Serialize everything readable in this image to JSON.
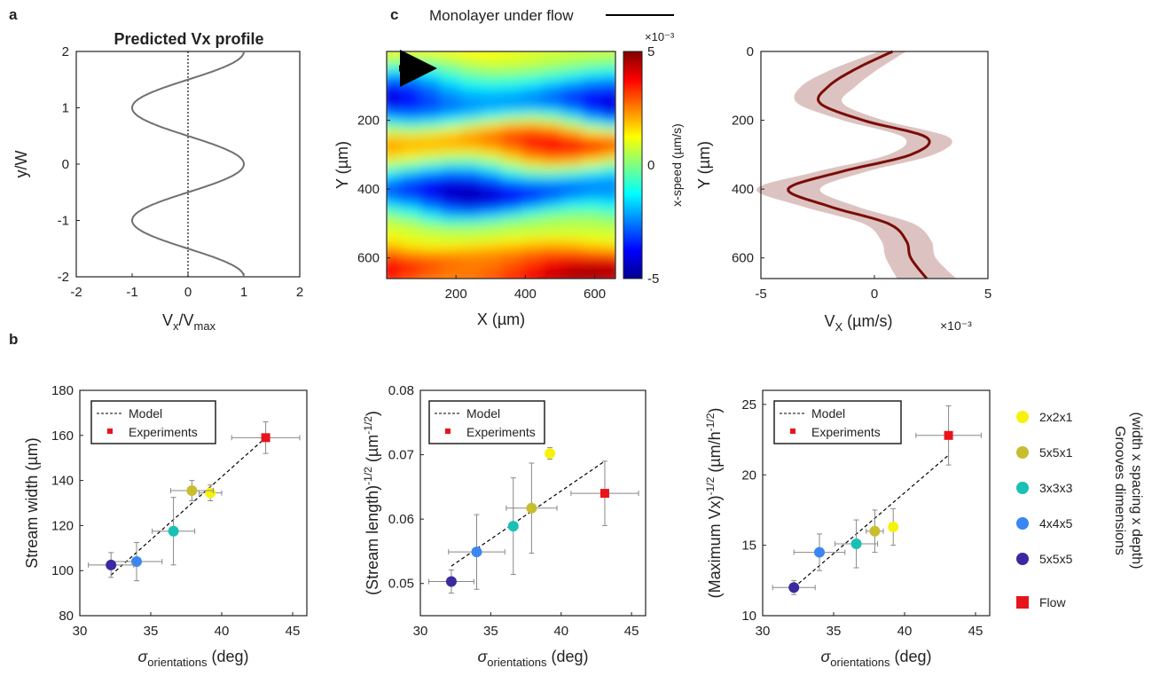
{
  "panel_letters": {
    "a": "a",
    "b": "b",
    "c": "c"
  },
  "colors": {
    "g2x2x1": "#f7f20c",
    "g5x5x1": "#c7bd2e",
    "g3x3x3": "#19c0b4",
    "g4x4x5": "#3a86f2",
    "g5x5x5": "#3a2aa0",
    "flow": "#e8141c",
    "profile": "#7a0d08",
    "band": "#dcc3c1",
    "curve_a": "#707070"
  },
  "header": {
    "legend_label": "Monolayer under flow"
  },
  "legend_right": {
    "items": [
      {
        "label": "2x2x1",
        "color": "#f7f20c",
        "marker": "circle"
      },
      {
        "label": "5x5x1",
        "color": "#c7bd2e",
        "marker": "circle"
      },
      {
        "label": "3x3x3",
        "color": "#19c0b4",
        "marker": "circle"
      },
      {
        "label": "4x4x5",
        "color": "#3a86f2",
        "marker": "circle"
      },
      {
        "label": "5x5x5",
        "color": "#3a2aa0",
        "marker": "circle"
      },
      {
        "label": "Flow",
        "color": "#e8141c",
        "marker": "square"
      }
    ],
    "title_line1": "Grooves dimensions",
    "title_line2": "(width x spacing x depth)"
  },
  "chart_data": [
    {
      "id": "a",
      "type": "line",
      "title": "Predicted Vx profile",
      "xlabel": "V",
      "xlabel_sub1": "x",
      "xlabel_mid": "/V",
      "xlabel_sub2": "max",
      "ylabel": "y/W",
      "xlim": [
        -2,
        2
      ],
      "ylim": [
        -2,
        2
      ],
      "xticks": [
        "-2",
        "-1",
        "0",
        "1",
        "2"
      ],
      "yticks": [
        "-2",
        "-1",
        "0",
        "1",
        "2"
      ],
      "curve": "Vx = cos(pi*y) for y in [-2, 2]",
      "reference_line_x": 0
    },
    {
      "id": "c-map",
      "type": "heatmap",
      "xlabel": "X (µm)",
      "ylabel": "Y (µm)",
      "xticks": [
        "200",
        "400",
        "600"
      ],
      "yticks": [
        "200",
        "400",
        "600"
      ],
      "colorbar_label": "x-speed (µm/s)",
      "colorbar_ticks": [
        "5",
        "0",
        "-5"
      ],
      "colorbar_exponent": "×10⁻³",
      "colorbar_range": [
        -0.005,
        0.005
      ],
      "bands": [
        {
          "y": 0,
          "value": 0.0012
        },
        {
          "y": 150,
          "value": -0.0038
        },
        {
          "y": 260,
          "value": 0.0034
        },
        {
          "y": 410,
          "value": -0.0041
        },
        {
          "y": 520,
          "value": 0.0008
        },
        {
          "y": 620,
          "value": 0.0042
        }
      ],
      "flow_arrow": "right"
    },
    {
      "id": "c-profile",
      "type": "line",
      "xlabel": "V",
      "xlabel_sub": "X",
      "xlabel_unit": " (µm/s)",
      "x_exponent": "×10⁻³",
      "ylabel": "Y (µm)",
      "xlim": [
        -5,
        5
      ],
      "ylim": [
        0,
        660
      ],
      "xticks": [
        "-5",
        "0",
        "5"
      ],
      "yticks": [
        "0",
        "200",
        "400",
        "600"
      ],
      "series": [
        {
          "y": [
            0,
            50,
            100,
            150,
            200,
            250,
            300,
            350,
            400,
            450,
            500,
            550,
            600,
            660
          ],
          "x": [
            0.8,
            -0.8,
            -2.0,
            -2.4,
            -0.5,
            2.3,
            1.6,
            -1.5,
            -3.8,
            -2.0,
            0.6,
            1.4,
            1.6,
            2.3
          ],
          "band_halfwidth": [
            0.6,
            1.0,
            1.2,
            1.0,
            0.9,
            1.0,
            1.0,
            1.1,
            1.4,
            1.2,
            1.1,
            1.1,
            1.1,
            1.3
          ]
        }
      ]
    },
    {
      "id": "b1",
      "type": "scatter",
      "xlabel": "σ",
      "xlabel_sub": "orientations",
      "xlabel_unit": " (deg)",
      "ylabel": "Stream width (µm)",
      "xlim": [
        30,
        46
      ],
      "ylim": [
        80,
        180
      ],
      "xticks": [
        "30",
        "35",
        "40",
        "45"
      ],
      "yticks": [
        "80",
        "100",
        "120",
        "140",
        "160",
        "180"
      ],
      "legend": {
        "model": "Model",
        "experiments": "Experiments"
      },
      "model_line": [
        [
          32.2,
          98
        ],
        [
          43.1,
          159
        ]
      ],
      "points": [
        {
          "name": "2x2x1",
          "x": 39.2,
          "y": 134.5,
          "xerr": 0.8,
          "yerr": 3.5
        },
        {
          "name": "5x5x1",
          "x": 37.9,
          "y": 135.5,
          "xerr": 1.5,
          "yerr": 4.5
        },
        {
          "name": "3x3x3",
          "x": 36.6,
          "y": 117.5,
          "xerr": 1.5,
          "yerr": 15
        },
        {
          "name": "4x4x5",
          "x": 34.0,
          "y": 104.0,
          "xerr": 1.8,
          "yerr": 8.5
        },
        {
          "name": "5x5x5",
          "x": 32.2,
          "y": 102.5,
          "xerr": 1.6,
          "yerr": 5.5
        },
        {
          "name": "Flow",
          "x": 43.1,
          "y": 159.0,
          "xerr": 2.4,
          "yerr": 7
        }
      ]
    },
    {
      "id": "b2",
      "type": "scatter",
      "xlabel": "σ",
      "xlabel_sub": "orientations",
      "xlabel_unit": " (deg)",
      "ylabel": "(Stream length)",
      "ylabel_sup": "-1/2",
      "ylabel_unit": " (µm",
      "ylabel_unit_sup": "-1/2",
      "ylabel_close": ")",
      "xlim": [
        30,
        46
      ],
      "ylim": [
        0.045,
        0.08
      ],
      "xticks": [
        "30",
        "35",
        "40",
        "45"
      ],
      "yticks": [
        "0.05",
        "0.06",
        "0.07",
        "0.08"
      ],
      "legend": {
        "model": "Model",
        "experiments": "Experiments"
      },
      "model_line": [
        [
          32.2,
          0.0527
        ],
        [
          43.1,
          0.069
        ]
      ],
      "points": [
        {
          "name": "2x2x1",
          "x": 39.2,
          "y": 0.0702,
          "xerr": 0,
          "yerr": 0.0009
        },
        {
          "name": "5x5x1",
          "x": 37.9,
          "y": 0.0617,
          "xerr": 1.8,
          "yerr": 0.007
        },
        {
          "name": "3x3x3",
          "x": 36.6,
          "y": 0.0589,
          "xerr": 0,
          "yerr": 0.0075
        },
        {
          "name": "4x4x5",
          "x": 34.0,
          "y": 0.0549,
          "xerr": 2.0,
          "yerr": 0.0058
        },
        {
          "name": "5x5x5",
          "x": 32.2,
          "y": 0.0503,
          "xerr": 1.6,
          "yerr": 0.0018
        },
        {
          "name": "Flow",
          "x": 43.1,
          "y": 0.064,
          "xerr": 2.4,
          "yerr": 0.005
        }
      ]
    },
    {
      "id": "b3",
      "type": "scatter",
      "xlabel": "σ",
      "xlabel_sub": "orientations",
      "xlabel_unit": " (deg)",
      "ylabel": "(Maximum Vx)",
      "ylabel_sup": "-1/2",
      "ylabel_unit": " (µm/h",
      "ylabel_unit_sup": "-1/2",
      "ylabel_close": ")",
      "xlim": [
        30,
        46
      ],
      "ylim": [
        10,
        26
      ],
      "xticks": [
        "30",
        "35",
        "40",
        "45"
      ],
      "yticks": [
        "10",
        "15",
        "20",
        "25"
      ],
      "legend": {
        "model": "Model",
        "experiments": "Experiments"
      },
      "model_line": [
        [
          32.2,
          12.0
        ],
        [
          43.1,
          21.4
        ]
      ],
      "points": [
        {
          "name": "2x2x1",
          "x": 39.2,
          "y": 16.3,
          "xerr": 0,
          "yerr": 1.3
        },
        {
          "name": "5x5x1",
          "x": 37.9,
          "y": 16.0,
          "xerr": 0.6,
          "yerr": 1.5
        },
        {
          "name": "3x3x3",
          "x": 36.6,
          "y": 15.1,
          "xerr": 1.5,
          "yerr": 1.7
        },
        {
          "name": "4x4x5",
          "x": 34.0,
          "y": 14.5,
          "xerr": 1.8,
          "yerr": 1.3
        },
        {
          "name": "5x5x5",
          "x": 32.2,
          "y": 12.0,
          "xerr": 1.5,
          "yerr": 0.5
        },
        {
          "name": "Flow",
          "x": 43.1,
          "y": 22.8,
          "xerr": 2.3,
          "yerr": 2.1
        }
      ]
    }
  ]
}
